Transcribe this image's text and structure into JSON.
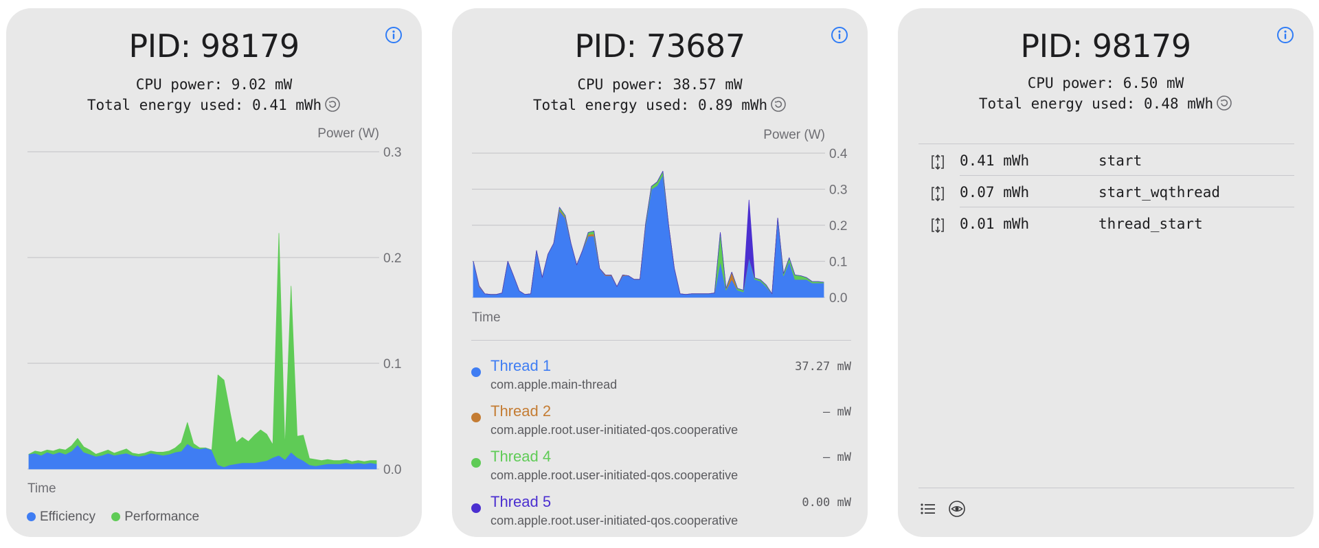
{
  "panels": [
    {
      "pid": "PID: 98179",
      "cpu_power": "CPU power: 9.02 mW",
      "total_energy": "Total energy used: 0.41 mWh",
      "y_axis_label": "Power (W)",
      "x_axis_label": "Time",
      "legend": [
        {
          "label": "Efficiency",
          "color": "#3f7df3"
        },
        {
          "label": "Performance",
          "color": "#5fcb56"
        }
      ]
    },
    {
      "pid": "PID: 73687",
      "cpu_power": "CPU power: 38.57 mW",
      "total_energy": "Total energy used: 0.89 mWh",
      "y_axis_label": "Power (W)",
      "x_axis_label": "Time",
      "threads": [
        {
          "name": "Thread 1",
          "queue": "com.apple.main-thread",
          "power": "37.27 mW",
          "color": "#3f7df3"
        },
        {
          "name": "Thread 2",
          "queue": "com.apple.root.user-initiated-qos.cooperative",
          "power": "– mW",
          "color": "#c47c33"
        },
        {
          "name": "Thread 4",
          "queue": "com.apple.root.user-initiated-qos.cooperative",
          "power": "– mW",
          "color": "#5fcb56"
        },
        {
          "name": "Thread 5",
          "queue": "com.apple.root.user-initiated-qos.cooperative",
          "power": "0.00 mW",
          "color": "#4b2fd0"
        }
      ]
    },
    {
      "pid": "PID: 98179",
      "cpu_power": "CPU power: 6.50 mW",
      "total_energy": "Total energy used: 0.48 mWh",
      "functions": [
        {
          "energy": "0.41 mWh",
          "name": "start"
        },
        {
          "energy": "0.07 mWh",
          "name": "start_wqthread"
        },
        {
          "energy": "0.01 mWh",
          "name": "thread_start"
        }
      ]
    }
  ],
  "chart_data": [
    {
      "type": "area",
      "ylabel": "Power (W)",
      "xlabel": "Time",
      "ylim": [
        0,
        0.3
      ],
      "yticks": [
        "0.3",
        "0.2",
        "0.1",
        "0.0"
      ],
      "stacked": true,
      "series": [
        {
          "name": "Efficiency",
          "color": "#3f7df3",
          "values": [
            0.014,
            0.015,
            0.013,
            0.016,
            0.014,
            0.016,
            0.014,
            0.017,
            0.023,
            0.016,
            0.014,
            0.012,
            0.013,
            0.015,
            0.013,
            0.014,
            0.015,
            0.013,
            0.012,
            0.013,
            0.015,
            0.014,
            0.013,
            0.014,
            0.016,
            0.017,
            0.024,
            0.02,
            0.019,
            0.02,
            0.018,
            0.004,
            0.002,
            0.004,
            0.005,
            0.006,
            0.006,
            0.006,
            0.007,
            0.008,
            0.011,
            0.013,
            0.009,
            0.016,
            0.011,
            0.008,
            0.004,
            0.003,
            0.004,
            0.005,
            0.005,
            0.005,
            0.006,
            0.005,
            0.006,
            0.005,
            0.006,
            0.005
          ]
        },
        {
          "name": "Performance",
          "color": "#5fcb56",
          "values": [
            0.0,
            0.002,
            0.003,
            0.002,
            0.003,
            0.003,
            0.004,
            0.005,
            0.006,
            0.005,
            0.004,
            0.002,
            0.003,
            0.003,
            0.002,
            0.003,
            0.004,
            0.002,
            0.002,
            0.002,
            0.002,
            0.002,
            0.003,
            0.003,
            0.004,
            0.008,
            0.02,
            0.004,
            0.001,
            0.0,
            0.0,
            0.085,
            0.082,
            0.05,
            0.02,
            0.024,
            0.02,
            0.026,
            0.03,
            0.025,
            0.012,
            0.21,
            0.011,
            0.157,
            0.02,
            0.024,
            0.006,
            0.006,
            0.004,
            0.004,
            0.003,
            0.003,
            0.003,
            0.002,
            0.002,
            0.002,
            0.002,
            0.003
          ]
        }
      ],
      "legend_placement": "bottom-left"
    },
    {
      "type": "area",
      "ylabel": "Power (W)",
      "xlabel": "Time",
      "ylim": [
        0,
        0.4
      ],
      "yticks": [
        "0.4",
        "0.3",
        "0.2",
        "0.1",
        "0.0"
      ],
      "stacked": true,
      "series": [
        {
          "name": "Thread 1",
          "color": "#3f7df3",
          "values": [
            0.1,
            0.03,
            0.01,
            0.008,
            0.008,
            0.012,
            0.1,
            0.06,
            0.018,
            0.008,
            0.01,
            0.13,
            0.055,
            0.12,
            0.15,
            0.24,
            0.22,
            0.15,
            0.09,
            0.13,
            0.17,
            0.17,
            0.08,
            0.06,
            0.06,
            0.03,
            0.06,
            0.06,
            0.05,
            0.05,
            0.2,
            0.3,
            0.31,
            0.34,
            0.2,
            0.08,
            0.01,
            0.008,
            0.01,
            0.01,
            0.01,
            0.01,
            0.012,
            0.1,
            0.02,
            0.05,
            0.02,
            0.015,
            0.11,
            0.05,
            0.045,
            0.03,
            0.01,
            0.22,
            0.06,
            0.1,
            0.05,
            0.05,
            0.05,
            0.04,
            0.04,
            0.04
          ]
        },
        {
          "name": "Thread 2",
          "color": "#c47c33",
          "values": [
            0.0,
            0.002,
            0.0,
            0.0,
            0.0,
            0.0,
            0.0,
            0.0,
            0.0,
            0.0,
            0.0,
            0.0,
            0.0,
            0.0,
            0.0,
            0.004,
            0.003,
            0.0,
            0.0,
            0.0,
            0.004,
            0.006,
            0.0,
            0.002,
            0.002,
            0.0,
            0.002,
            0.0,
            0.0,
            0.0,
            0.0,
            0.0,
            0.0,
            0.0,
            0.0,
            0.0,
            0.0,
            0.0,
            0.0,
            0.0,
            0.0,
            0.0,
            0.0,
            0.0,
            0.0,
            0.02,
            0.0,
            0.0,
            0.0,
            0.0,
            0.0,
            0.0,
            0.0,
            0.0,
            0.0,
            0.0,
            0.0,
            0.0,
            0.0,
            0.0,
            0.0,
            0.0
          ]
        },
        {
          "name": "Thread 4",
          "color": "#5fcb56",
          "values": [
            0.0,
            0.0,
            0.0,
            0.0,
            0.0,
            0.0,
            0.0,
            0.0,
            0.0,
            0.0,
            0.0,
            0.0,
            0.0,
            0.0,
            0.0,
            0.006,
            0.004,
            0.0,
            0.0,
            0.0,
            0.006,
            0.008,
            0.0,
            0.0,
            0.0,
            0.0,
            0.0,
            0.0,
            0.0,
            0.0,
            0.005,
            0.008,
            0.01,
            0.01,
            0.0,
            0.0,
            0.0,
            0.0,
            0.0,
            0.0,
            0.0,
            0.0,
            0.0,
            0.08,
            0.005,
            0.0,
            0.005,
            0.005,
            0.0,
            0.004,
            0.004,
            0.004,
            0.0,
            0.0,
            0.006,
            0.01,
            0.012,
            0.01,
            0.005,
            0.004,
            0.004,
            0.002
          ]
        },
        {
          "name": "Thread 5",
          "color": "#4b2fd0",
          "values": [
            0.0,
            0.0,
            0.0,
            0.0,
            0.0,
            0.0,
            0.0,
            0.0,
            0.0,
            0.0,
            0.0,
            0.0,
            0.0,
            0.0,
            0.0,
            0.0,
            0.0,
            0.0,
            0.0,
            0.0,
            0.0,
            0.0,
            0.0,
            0.0,
            0.0,
            0.0,
            0.0,
            0.0,
            0.0,
            0.0,
            0.0,
            0.0,
            0.0,
            0.0,
            0.0,
            0.0,
            0.0,
            0.0,
            0.0,
            0.0,
            0.0,
            0.0,
            0.0,
            0.0,
            0.0,
            0.0,
            0.0,
            0.0,
            0.16,
            0.0,
            0.0,
            0.0,
            0.0,
            0.0,
            0.0,
            0.0,
            0.0,
            0.0,
            0.0,
            0.0,
            0.0,
            0.0
          ]
        }
      ],
      "legend_placement": "below"
    }
  ],
  "icons": {
    "info": "info-icon",
    "reset": "reset-icon",
    "expand": "expand-vertical-icon",
    "list": "list-icon",
    "eye": "eye-icon"
  },
  "colors": {
    "accent": "#2f7cf6",
    "card_bg": "#e8e8e8",
    "grid": "#c8c8cc"
  }
}
